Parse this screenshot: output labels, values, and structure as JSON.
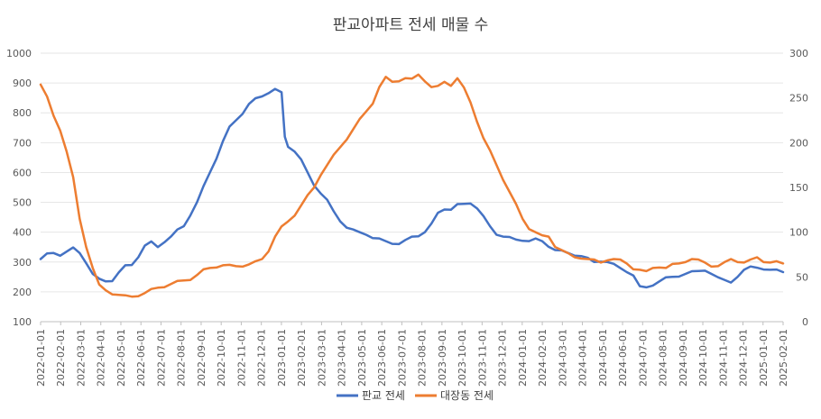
{
  "chart_data": {
    "type": "line",
    "title": "판교아파트 전세 매물 수",
    "y_left": {
      "min": 100,
      "max": 1000,
      "ticks": [
        100,
        200,
        300,
        400,
        500,
        600,
        700,
        800,
        900,
        1000
      ]
    },
    "y_right": {
      "min": 0,
      "max": 300,
      "ticks": [
        0,
        50,
        100,
        150,
        200,
        250,
        300
      ]
    },
    "x_labels": [
      "2022-01-01",
      "2022-02-01",
      "2022-03-01",
      "2022-04-01",
      "2022-05-01",
      "2022-06-01",
      "2022-07-01",
      "2022-08-01",
      "2022-09-01",
      "2022-10-01",
      "2022-11-01",
      "2022-12-01",
      "2023-01-01",
      "2023-02-01",
      "2023-03-01",
      "2023-04-01",
      "2023-05-01",
      "2023-06-01",
      "2023-07-01",
      "2023-08-01",
      "2023-09-01",
      "2023-10-01",
      "2023-11-01",
      "2023-12-01",
      "2024-01-01",
      "2024-02-01",
      "2024-03-01",
      "2024-04-01",
      "2024-05-01",
      "2024-06-01",
      "2024-07-01",
      "2024-08-01",
      "2024-09-01",
      "2024-10-01",
      "2024-11-01",
      "2024-12-01",
      "2025-01-01",
      "2025-02-01"
    ],
    "grid": "horizontal",
    "legend_position": "bottom",
    "series": [
      {
        "name": "판교 전세",
        "axis": "left",
        "color": "#4472c4",
        "points": [
          [
            0,
            310
          ],
          [
            0.5,
            325
          ],
          [
            1,
            330
          ],
          [
            1.5,
            325
          ],
          [
            2,
            335
          ],
          [
            2.5,
            345
          ],
          [
            3,
            330
          ],
          [
            3.5,
            300
          ],
          [
            4,
            260
          ],
          [
            4.5,
            240
          ],
          [
            5,
            235
          ],
          [
            5.5,
            240
          ],
          [
            6,
            265
          ],
          [
            6.5,
            285
          ],
          [
            7,
            290
          ],
          [
            7.5,
            320
          ],
          [
            8,
            355
          ],
          [
            8.5,
            365
          ],
          [
            9,
            350
          ],
          [
            9.5,
            370
          ],
          [
            10,
            385
          ],
          [
            10.5,
            405
          ],
          [
            11,
            420
          ],
          [
            11.5,
            460
          ],
          [
            12,
            500
          ],
          [
            12.5,
            550
          ],
          [
            13,
            600
          ],
          [
            13.5,
            650
          ],
          [
            14,
            705
          ],
          [
            14.5,
            750
          ],
          [
            15,
            775
          ],
          [
            15.5,
            800
          ],
          [
            16,
            830
          ],
          [
            16.5,
            845
          ],
          [
            17,
            855
          ],
          [
            17.5,
            870
          ],
          [
            18,
            880
          ],
          [
            18.5,
            865
          ],
          [
            18.75,
            720
          ],
          [
            19,
            690
          ],
          [
            19.5,
            670
          ],
          [
            20,
            640
          ],
          [
            20.5,
            600
          ],
          [
            21,
            560
          ],
          [
            21.5,
            530
          ],
          [
            22,
            505
          ],
          [
            22.5,
            470
          ],
          [
            23,
            440
          ],
          [
            23.5,
            415
          ],
          [
            24,
            405
          ],
          [
            24.5,
            400
          ],
          [
            25,
            395
          ],
          [
            25.5,
            380
          ],
          [
            26,
            375
          ],
          [
            26.5,
            370
          ],
          [
            27,
            365
          ],
          [
            27.5,
            360
          ],
          [
            28,
            370
          ],
          [
            28.5,
            385
          ],
          [
            29,
            390
          ],
          [
            29.5,
            400
          ],
          [
            30,
            425
          ],
          [
            30.5,
            465
          ],
          [
            31,
            480
          ],
          [
            31.5,
            475
          ],
          [
            32,
            490
          ],
          [
            32.5,
            495
          ],
          [
            33,
            500
          ],
          [
            33.5,
            480
          ],
          [
            34,
            450
          ],
          [
            34.5,
            420
          ],
          [
            35,
            395
          ],
          [
            35.5,
            385
          ],
          [
            36,
            380
          ],
          [
            36.5,
            375
          ],
          [
            37,
            375
          ],
          [
            37.5,
            370
          ],
          [
            38,
            375
          ],
          [
            38.5,
            370
          ],
          [
            39,
            355
          ],
          [
            39.5,
            340
          ],
          [
            40,
            335
          ],
          [
            40.5,
            330
          ],
          [
            41,
            325
          ],
          [
            41.5,
            320
          ],
          [
            42,
            310
          ],
          [
            42.5,
            300
          ],
          [
            43,
            305
          ],
          [
            43.5,
            300
          ],
          [
            44,
            290
          ],
          [
            44.5,
            280
          ],
          [
            45,
            270
          ],
          [
            45.5,
            255
          ],
          [
            46,
            215
          ],
          [
            46.5,
            215
          ],
          [
            47,
            225
          ],
          [
            47.5,
            235
          ],
          [
            48,
            245
          ],
          [
            48.5,
            250
          ],
          [
            49,
            255
          ],
          [
            49.5,
            260
          ],
          [
            50,
            265
          ],
          [
            50.5,
            270
          ],
          [
            51,
            275
          ],
          [
            51.5,
            260
          ],
          [
            52,
            245
          ],
          [
            52.5,
            240
          ],
          [
            53,
            235
          ],
          [
            53.5,
            250
          ],
          [
            54,
            270
          ],
          [
            54.5,
            285
          ],
          [
            55,
            285
          ],
          [
            55.5,
            275
          ],
          [
            56,
            270
          ],
          [
            56.5,
            275
          ],
          [
            57,
            270
          ]
        ]
      },
      {
        "name": "대장동 전세",
        "axis": "right",
        "color": "#ed7d31",
        "points": [
          [
            0,
            265
          ],
          [
            0.5,
            250
          ],
          [
            1,
            230
          ],
          [
            1.5,
            215
          ],
          [
            2,
            190
          ],
          [
            2.5,
            160
          ],
          [
            3,
            115
          ],
          [
            3.5,
            85
          ],
          [
            4,
            60
          ],
          [
            4.5,
            40
          ],
          [
            5,
            35
          ],
          [
            5.5,
            32
          ],
          [
            6,
            30
          ],
          [
            6.5,
            28
          ],
          [
            7,
            28
          ],
          [
            7.5,
            30
          ],
          [
            8,
            32
          ],
          [
            8.5,
            35
          ],
          [
            9,
            38
          ],
          [
            9.5,
            40
          ],
          [
            10,
            42
          ],
          [
            10.5,
            44
          ],
          [
            11,
            46
          ],
          [
            11.5,
            48
          ],
          [
            12,
            52
          ],
          [
            12.5,
            57
          ],
          [
            13,
            60
          ],
          [
            13.5,
            62
          ],
          [
            14,
            63
          ],
          [
            14.5,
            62
          ],
          [
            15,
            62
          ],
          [
            15.5,
            63
          ],
          [
            16,
            64
          ],
          [
            16.5,
            66
          ],
          [
            17,
            70
          ],
          [
            17.5,
            80
          ],
          [
            18,
            95
          ],
          [
            18.5,
            105
          ],
          [
            19,
            112
          ],
          [
            19.5,
            120
          ],
          [
            20,
            130
          ],
          [
            20.5,
            140
          ],
          [
            21,
            150
          ],
          [
            21.5,
            165
          ],
          [
            22,
            175
          ],
          [
            22.5,
            185
          ],
          [
            23,
            195
          ],
          [
            23.5,
            205
          ],
          [
            24,
            215
          ],
          [
            24.5,
            225
          ],
          [
            25,
            235
          ],
          [
            25.5,
            245
          ],
          [
            26,
            262
          ],
          [
            26.5,
            272
          ],
          [
            27,
            268
          ],
          [
            27.5,
            270
          ],
          [
            28,
            272
          ],
          [
            28.5,
            270
          ],
          [
            29,
            276
          ],
          [
            29.5,
            270
          ],
          [
            30,
            262
          ],
          [
            30.5,
            262
          ],
          [
            31,
            268
          ],
          [
            31.5,
            265
          ],
          [
            32,
            272
          ],
          [
            32.5,
            260
          ],
          [
            33,
            245
          ],
          [
            33.5,
            225
          ],
          [
            34,
            205
          ],
          [
            34.5,
            190
          ],
          [
            35,
            175
          ],
          [
            35.5,
            160
          ],
          [
            36,
            145
          ],
          [
            36.5,
            130
          ],
          [
            37,
            115
          ],
          [
            37.5,
            105
          ],
          [
            38,
            100
          ],
          [
            38.5,
            95
          ],
          [
            39,
            95
          ],
          [
            39.5,
            85
          ],
          [
            40,
            80
          ],
          [
            40.5,
            75
          ],
          [
            41,
            72
          ],
          [
            41.5,
            72
          ],
          [
            42,
            70
          ],
          [
            42.5,
            68
          ],
          [
            43,
            66
          ],
          [
            43.5,
            70
          ],
          [
            44,
            70
          ],
          [
            44.5,
            68
          ],
          [
            45,
            65
          ],
          [
            45.5,
            60
          ],
          [
            46,
            58
          ],
          [
            46.5,
            55
          ],
          [
            47,
            60
          ],
          [
            47.5,
            62
          ],
          [
            48,
            60
          ],
          [
            48.5,
            63
          ],
          [
            49,
            65
          ],
          [
            49.5,
            68
          ],
          [
            50,
            70
          ],
          [
            50.5,
            68
          ],
          [
            51,
            66
          ],
          [
            51.5,
            63
          ],
          [
            52,
            62
          ],
          [
            52.5,
            65
          ],
          [
            53,
            70
          ],
          [
            53.5,
            68
          ],
          [
            54,
            66
          ],
          [
            54.5,
            68
          ],
          [
            55,
            72
          ],
          [
            55.5,
            68
          ],
          [
            56,
            66
          ],
          [
            56.5,
            66
          ],
          [
            57,
            65
          ]
        ]
      }
    ]
  }
}
